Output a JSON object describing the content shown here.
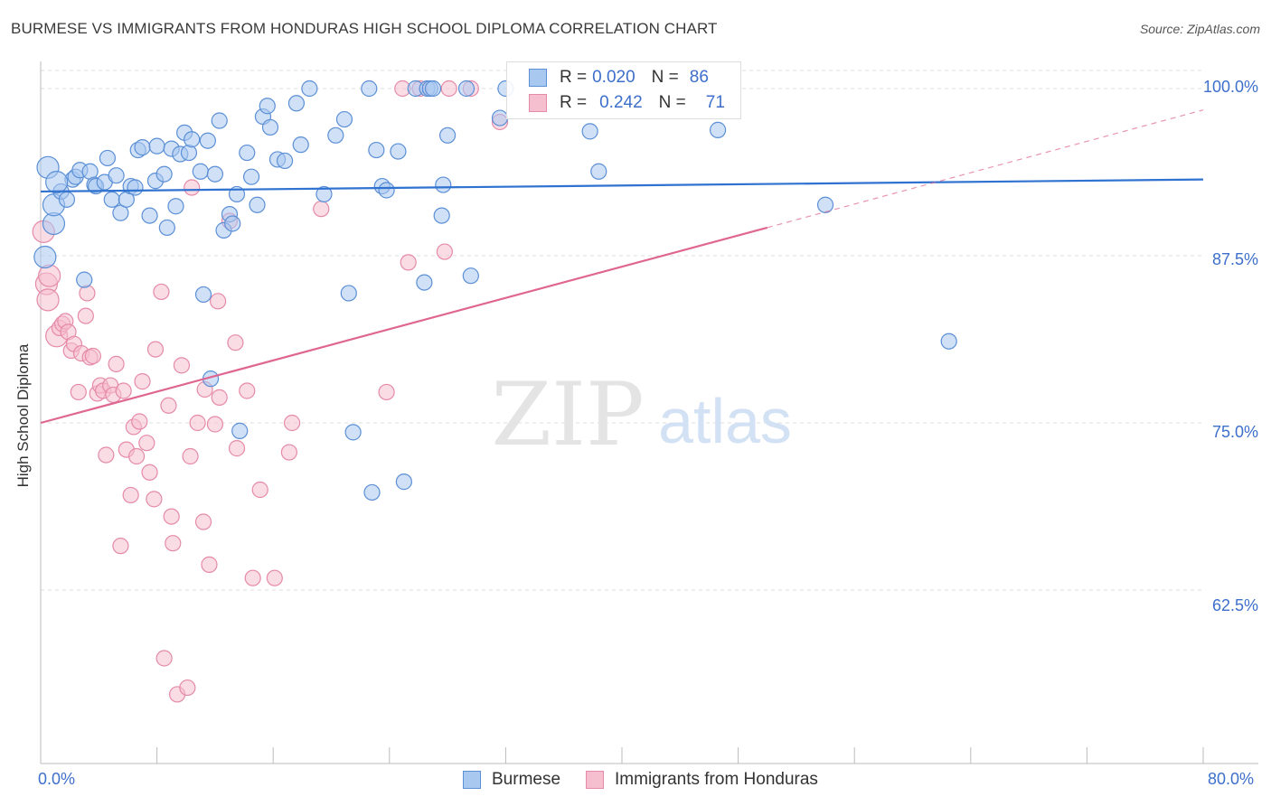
{
  "title": "BURMESE VS IMMIGRANTS FROM HONDURAS HIGH SCHOOL DIPLOMA CORRELATION CHART",
  "source": "Source: ZipAtlas.com",
  "watermark": {
    "zip": "ZIP",
    "atlas": "atlas"
  },
  "legend": {
    "burmese": {
      "r_label": "R =",
      "r_value": "0.020",
      "n_label": "N =",
      "n_value": "86"
    },
    "honduras": {
      "r_label": "R =",
      "r_value": "0.242",
      "n_label": "N =",
      "n_value": "71"
    }
  },
  "bottom_legend": {
    "burmese": "Burmese",
    "honduras": "Immigrants from Honduras"
  },
  "colors": {
    "burmese_fill": "#a9c8f0",
    "burmese_stroke": "#5b8fd6",
    "burmese_line": "#2f72d0",
    "honduras_fill": "#f6bfd0",
    "honduras_stroke": "#e58aa8",
    "honduras_line": "#e06692",
    "axis_text": "#3d6fcb",
    "grid": "#dddddd"
  },
  "chart_data": {
    "type": "scatter",
    "title": "BURMESE VS IMMIGRANTS FROM HONDURAS HIGH SCHOOL DIPLOMA CORRELATION CHART",
    "xlabel": "",
    "ylabel": "High School Diploma",
    "xlim": [
      0,
      80
    ],
    "ylim": [
      51,
      101
    ],
    "x_tick_labels": [
      "0.0%",
      "80.0%"
    ],
    "y_ticks": [
      62.5,
      75.0,
      87.5,
      100.0
    ],
    "y_tick_labels": [
      "62.5%",
      "75.0%",
      "87.5%",
      "100.0%"
    ],
    "series": [
      {
        "name": "Burmese",
        "trend": {
          "x": [
            0,
            80
          ],
          "y": [
            92.3,
            93.2
          ]
        },
        "points": [
          [
            0.3,
            87.4
          ],
          [
            0.9,
            89.9
          ],
          [
            0.9,
            91.3
          ],
          [
            1.4,
            92.3
          ],
          [
            1.8,
            91.7
          ],
          [
            2.2,
            93.2
          ],
          [
            2.4,
            93.4
          ],
          [
            2.7,
            93.9
          ],
          [
            3.0,
            85.7
          ],
          [
            3.4,
            93.8
          ],
          [
            3.7,
            92.8
          ],
          [
            3.8,
            92.7
          ],
          [
            4.4,
            93.0
          ],
          [
            4.6,
            94.8
          ],
          [
            4.9,
            91.7
          ],
          [
            5.2,
            93.5
          ],
          [
            5.5,
            90.7
          ],
          [
            5.9,
            91.7
          ],
          [
            6.2,
            92.7
          ],
          [
            6.5,
            92.6
          ],
          [
            6.7,
            95.4
          ],
          [
            7.0,
            95.6
          ],
          [
            7.5,
            90.5
          ],
          [
            7.9,
            93.1
          ],
          [
            8.0,
            95.7
          ],
          [
            8.5,
            93.6
          ],
          [
            8.7,
            89.6
          ],
          [
            9.0,
            95.5
          ],
          [
            9.3,
            91.2
          ],
          [
            9.6,
            95.1
          ],
          [
            9.9,
            96.7
          ],
          [
            10.2,
            95.2
          ],
          [
            10.4,
            96.2
          ],
          [
            11.0,
            93.8
          ],
          [
            11.2,
            84.6
          ],
          [
            11.5,
            96.1
          ],
          [
            11.7,
            78.3
          ],
          [
            12.0,
            93.6
          ],
          [
            12.3,
            97.6
          ],
          [
            12.6,
            89.4
          ],
          [
            13.0,
            90.6
          ],
          [
            13.2,
            89.9
          ],
          [
            13.5,
            92.1
          ],
          [
            13.7,
            74.4
          ],
          [
            14.2,
            95.2
          ],
          [
            14.5,
            93.4
          ],
          [
            14.9,
            91.3
          ],
          [
            15.3,
            97.9
          ],
          [
            15.6,
            98.7
          ],
          [
            15.8,
            97.1
          ],
          [
            16.3,
            94.7
          ],
          [
            16.8,
            94.6
          ],
          [
            17.6,
            98.9
          ],
          [
            17.9,
            95.8
          ],
          [
            18.5,
            100.0
          ],
          [
            19.5,
            92.1
          ],
          [
            20.3,
            96.5
          ],
          [
            20.9,
            97.7
          ],
          [
            21.2,
            84.7
          ],
          [
            21.5,
            74.3
          ],
          [
            22.6,
            100.0
          ],
          [
            22.8,
            69.8
          ],
          [
            23.1,
            95.4
          ],
          [
            23.5,
            92.7
          ],
          [
            23.8,
            92.4
          ],
          [
            24.6,
            95.3
          ],
          [
            25.0,
            70.6
          ],
          [
            25.8,
            100.0
          ],
          [
            26.4,
            85.5
          ],
          [
            26.6,
            100.0
          ],
          [
            26.8,
            100.0
          ],
          [
            27.0,
            100.0
          ],
          [
            27.6,
            90.5
          ],
          [
            27.7,
            92.8
          ],
          [
            28.0,
            96.5
          ],
          [
            29.3,
            100.0
          ],
          [
            29.6,
            86.0
          ],
          [
            31.6,
            97.8
          ],
          [
            32.0,
            100.0
          ],
          [
            37.8,
            96.8
          ],
          [
            38.4,
            93.8
          ],
          [
            46.6,
            96.9
          ],
          [
            54.0,
            91.3
          ],
          [
            62.5,
            81.1
          ],
          [
            0.5,
            94.1
          ],
          [
            1.1,
            93.0
          ]
        ]
      },
      {
        "name": "Immigrants from Honduras",
        "trend_solid": {
          "x": [
            0,
            50
          ],
          "y": [
            75.0,
            89.6
          ]
        },
        "trend_dashed": {
          "x": [
            50,
            80
          ],
          "y": [
            89.6,
            98.4
          ]
        },
        "points": [
          [
            0.2,
            89.3
          ],
          [
            0.4,
            85.4
          ],
          [
            0.5,
            84.2
          ],
          [
            0.6,
            86.0
          ],
          [
            1.1,
            81.5
          ],
          [
            1.3,
            82.1
          ],
          [
            1.5,
            82.4
          ],
          [
            1.7,
            82.6
          ],
          [
            1.9,
            81.8
          ],
          [
            2.1,
            80.4
          ],
          [
            2.3,
            80.9
          ],
          [
            2.6,
            77.3
          ],
          [
            2.8,
            80.2
          ],
          [
            3.1,
            83.0
          ],
          [
            3.2,
            84.7
          ],
          [
            3.4,
            79.9
          ],
          [
            3.6,
            80.0
          ],
          [
            3.9,
            77.2
          ],
          [
            4.1,
            77.8
          ],
          [
            4.3,
            77.4
          ],
          [
            4.5,
            72.6
          ],
          [
            4.8,
            77.8
          ],
          [
            5.0,
            77.1
          ],
          [
            5.2,
            79.4
          ],
          [
            5.5,
            65.8
          ],
          [
            5.7,
            77.4
          ],
          [
            5.9,
            73.0
          ],
          [
            6.2,
            69.6
          ],
          [
            6.4,
            74.7
          ],
          [
            6.6,
            72.5
          ],
          [
            6.8,
            75.1
          ],
          [
            7.0,
            78.1
          ],
          [
            7.3,
            73.5
          ],
          [
            7.5,
            71.3
          ],
          [
            7.8,
            69.3
          ],
          [
            7.9,
            80.5
          ],
          [
            8.3,
            84.8
          ],
          [
            8.5,
            57.4
          ],
          [
            8.8,
            76.3
          ],
          [
            9.0,
            68.0
          ],
          [
            9.1,
            66.0
          ],
          [
            9.4,
            54.7
          ],
          [
            9.7,
            79.3
          ],
          [
            10.1,
            55.2
          ],
          [
            10.3,
            72.5
          ],
          [
            10.4,
            92.6
          ],
          [
            10.8,
            75.0
          ],
          [
            11.2,
            67.6
          ],
          [
            11.3,
            77.5
          ],
          [
            11.6,
            64.4
          ],
          [
            12.0,
            74.9
          ],
          [
            12.2,
            84.1
          ],
          [
            12.3,
            76.9
          ],
          [
            13.0,
            90.1
          ],
          [
            13.4,
            81.0
          ],
          [
            13.5,
            73.1
          ],
          [
            14.2,
            77.4
          ],
          [
            14.6,
            63.4
          ],
          [
            15.1,
            70.0
          ],
          [
            16.1,
            63.4
          ],
          [
            17.1,
            72.8
          ],
          [
            17.3,
            75.0
          ],
          [
            19.3,
            91.0
          ],
          [
            23.8,
            77.3
          ],
          [
            24.9,
            100.0
          ],
          [
            25.3,
            87.0
          ],
          [
            26.1,
            100.0
          ],
          [
            27.8,
            87.8
          ],
          [
            28.1,
            100.0
          ],
          [
            29.6,
            100.0
          ],
          [
            31.6,
            97.5
          ]
        ]
      }
    ]
  }
}
